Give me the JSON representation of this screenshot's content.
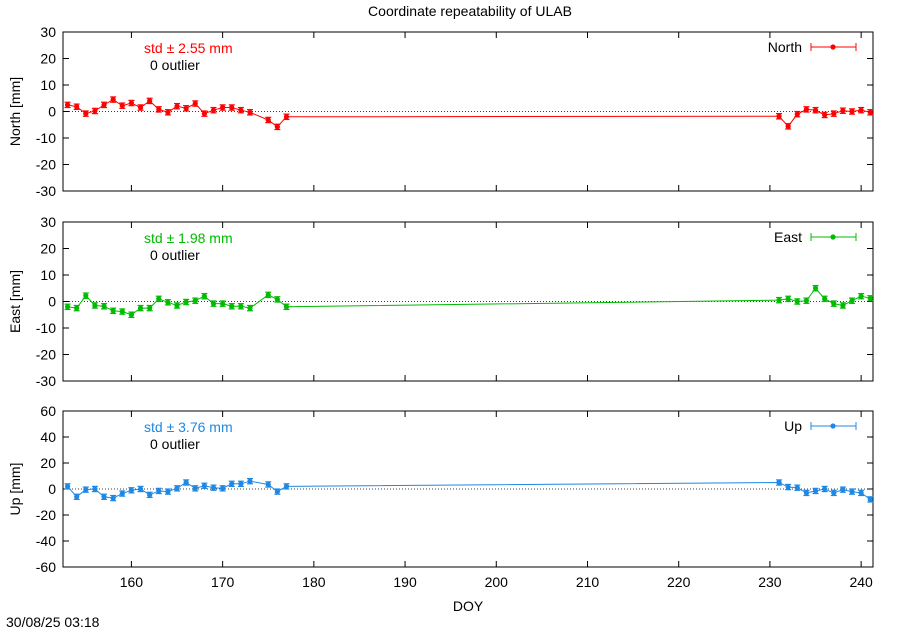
{
  "title": "Coordinate repeatability of ULAB",
  "timestamp": "30/08/25 03:18",
  "xlabel": "DOY",
  "x_ticks": [
    160,
    170,
    180,
    190,
    200,
    210,
    220,
    230,
    240
  ],
  "xlim": [
    152.5,
    241.3
  ],
  "chart_data": [
    {
      "type": "line",
      "name": "North",
      "ylabel": "North [mm]",
      "ylim": [
        -30,
        30
      ],
      "yticks": [
        30,
        20,
        10,
        0,
        -10,
        -20,
        -30
      ],
      "color": "#ff0000",
      "std_text": "std ± 2.55 mm",
      "outlier_text": "0 outlier",
      "legend": "North",
      "legend_position": "top-right",
      "x": [
        153,
        154,
        155,
        156,
        157,
        158,
        159,
        160,
        161,
        162,
        163,
        164,
        165,
        166,
        167,
        168,
        169,
        170,
        171,
        172,
        173,
        175,
        176,
        177,
        231,
        232,
        233,
        234,
        235,
        236,
        237,
        238,
        239,
        240,
        241
      ],
      "y": [
        2.5,
        1.8,
        -0.8,
        0.2,
        2.5,
        4.5,
        2.2,
        3.2,
        1.5,
        4,
        0.8,
        -0.3,
        2,
        1.2,
        3,
        -0.8,
        0.5,
        1.5,
        1.5,
        0.5,
        -0.3,
        -3.2,
        -5.8,
        -2,
        -1.8,
        -5.6,
        -1,
        0.8,
        0.5,
        -1.3,
        -0.8,
        0.3,
        0,
        0.5,
        -0.3
      ],
      "err": [
        1,
        1,
        1,
        1,
        1,
        1,
        1,
        1,
        1,
        1,
        1,
        1,
        1,
        1,
        1,
        1,
        1,
        1,
        1,
        1,
        1,
        1,
        1,
        1,
        1,
        1,
        1,
        1,
        1,
        1,
        1,
        1,
        1,
        1,
        1
      ]
    },
    {
      "type": "line",
      "name": "East",
      "ylabel": "East [mm]",
      "ylim": [
        -30,
        30
      ],
      "yticks": [
        30,
        20,
        10,
        0,
        -10,
        -20,
        -30
      ],
      "color": "#00bb00",
      "std_text": "std ± 1.98 mm",
      "outlier_text": "0 outlier",
      "legend": "East",
      "legend_position": "top-right",
      "x": [
        153,
        154,
        155,
        156,
        157,
        158,
        159,
        160,
        161,
        162,
        163,
        164,
        165,
        166,
        167,
        168,
        169,
        170,
        171,
        172,
        173,
        175,
        176,
        177,
        231,
        232,
        233,
        234,
        235,
        236,
        237,
        238,
        239,
        240,
        241
      ],
      "y": [
        -2,
        -2.5,
        2.2,
        -1.5,
        -1.8,
        -3.5,
        -3.8,
        -5,
        -2.5,
        -2.5,
        1,
        -0.3,
        -1.5,
        -0.2,
        0.3,
        2,
        -0.8,
        -0.8,
        -1.8,
        -1.8,
        -2.5,
        2.5,
        0.8,
        -2,
        0.5,
        1,
        0,
        0.3,
        5,
        1,
        -0.8,
        -1.5,
        0.3,
        2,
        1.2
      ],
      "err": [
        1,
        1,
        1,
        1,
        1,
        1,
        1,
        1,
        1,
        1,
        1,
        1,
        1,
        1,
        1,
        1,
        1,
        1,
        1,
        1,
        1,
        1,
        1,
        1,
        1,
        1,
        1,
        1,
        1,
        1,
        1,
        1,
        1,
        1,
        1
      ]
    },
    {
      "type": "line",
      "name": "Up",
      "ylabel": "Up [mm]",
      "ylim": [
        -60,
        60
      ],
      "yticks": [
        60,
        40,
        20,
        0,
        -20,
        -40,
        -60
      ],
      "color": "#1e88e5",
      "std_text": "std ± 3.76 mm",
      "outlier_text": "0 outlier",
      "legend": "Up",
      "legend_position": "top-right",
      "x": [
        153,
        154,
        155,
        156,
        157,
        158,
        159,
        160,
        161,
        162,
        163,
        164,
        165,
        166,
        167,
        168,
        169,
        170,
        171,
        172,
        173,
        175,
        176,
        177,
        231,
        232,
        233,
        234,
        235,
        236,
        237,
        238,
        239,
        240,
        241
      ],
      "y": [
        2,
        -6,
        -0.5,
        0,
        -6,
        -7,
        -3.5,
        -1,
        0,
        -4.5,
        -1.5,
        -2,
        0.5,
        5,
        0.5,
        2.5,
        1,
        0.5,
        4,
        4,
        6,
        3.5,
        -2,
        2,
        5,
        1.5,
        1,
        -3,
        -1.5,
        0,
        -3,
        -0.5,
        -2,
        -3,
        -8
      ],
      "err": [
        2,
        2,
        2,
        2,
        2,
        2,
        2,
        2,
        2,
        2,
        2,
        2,
        2,
        2,
        2,
        2,
        2,
        2,
        2,
        2,
        2,
        2,
        2,
        2,
        2,
        2,
        2,
        2,
        2,
        2,
        2,
        2,
        2,
        2,
        2
      ]
    }
  ]
}
